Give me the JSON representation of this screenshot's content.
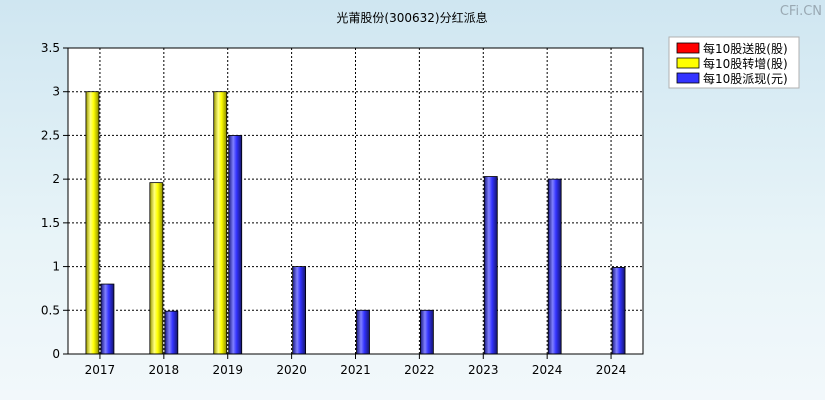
{
  "chart_data": {
    "type": "bar",
    "title": "光莆股份(300632)分红派息",
    "watermark": "CFi.CN",
    "categories": [
      "2017",
      "2018",
      "2019",
      "2020",
      "2021",
      "2022",
      "2023",
      "2024",
      "2024"
    ],
    "ylim": [
      0,
      3.5
    ],
    "yticks": [
      "0",
      "0.5",
      "1",
      "1.5",
      "2",
      "2.5",
      "3",
      "3.5"
    ],
    "grid": true,
    "legend_position": "top-right",
    "series": [
      {
        "name": "每10股送股(股)",
        "color": "#ff0000",
        "values": [
          0,
          0,
          0,
          0,
          0,
          0,
          0,
          0,
          0
        ]
      },
      {
        "name": "每10股转增(股)",
        "color": "#ffff00",
        "values": [
          3,
          1.96,
          3,
          0,
          0,
          0,
          0,
          0,
          0
        ]
      },
      {
        "name": "每10股派现(元)",
        "color": "#3333ff",
        "values": [
          0.8,
          0.49,
          2.5,
          1.0,
          0.5,
          0.5,
          2.03,
          2.0,
          0.99
        ]
      }
    ]
  }
}
